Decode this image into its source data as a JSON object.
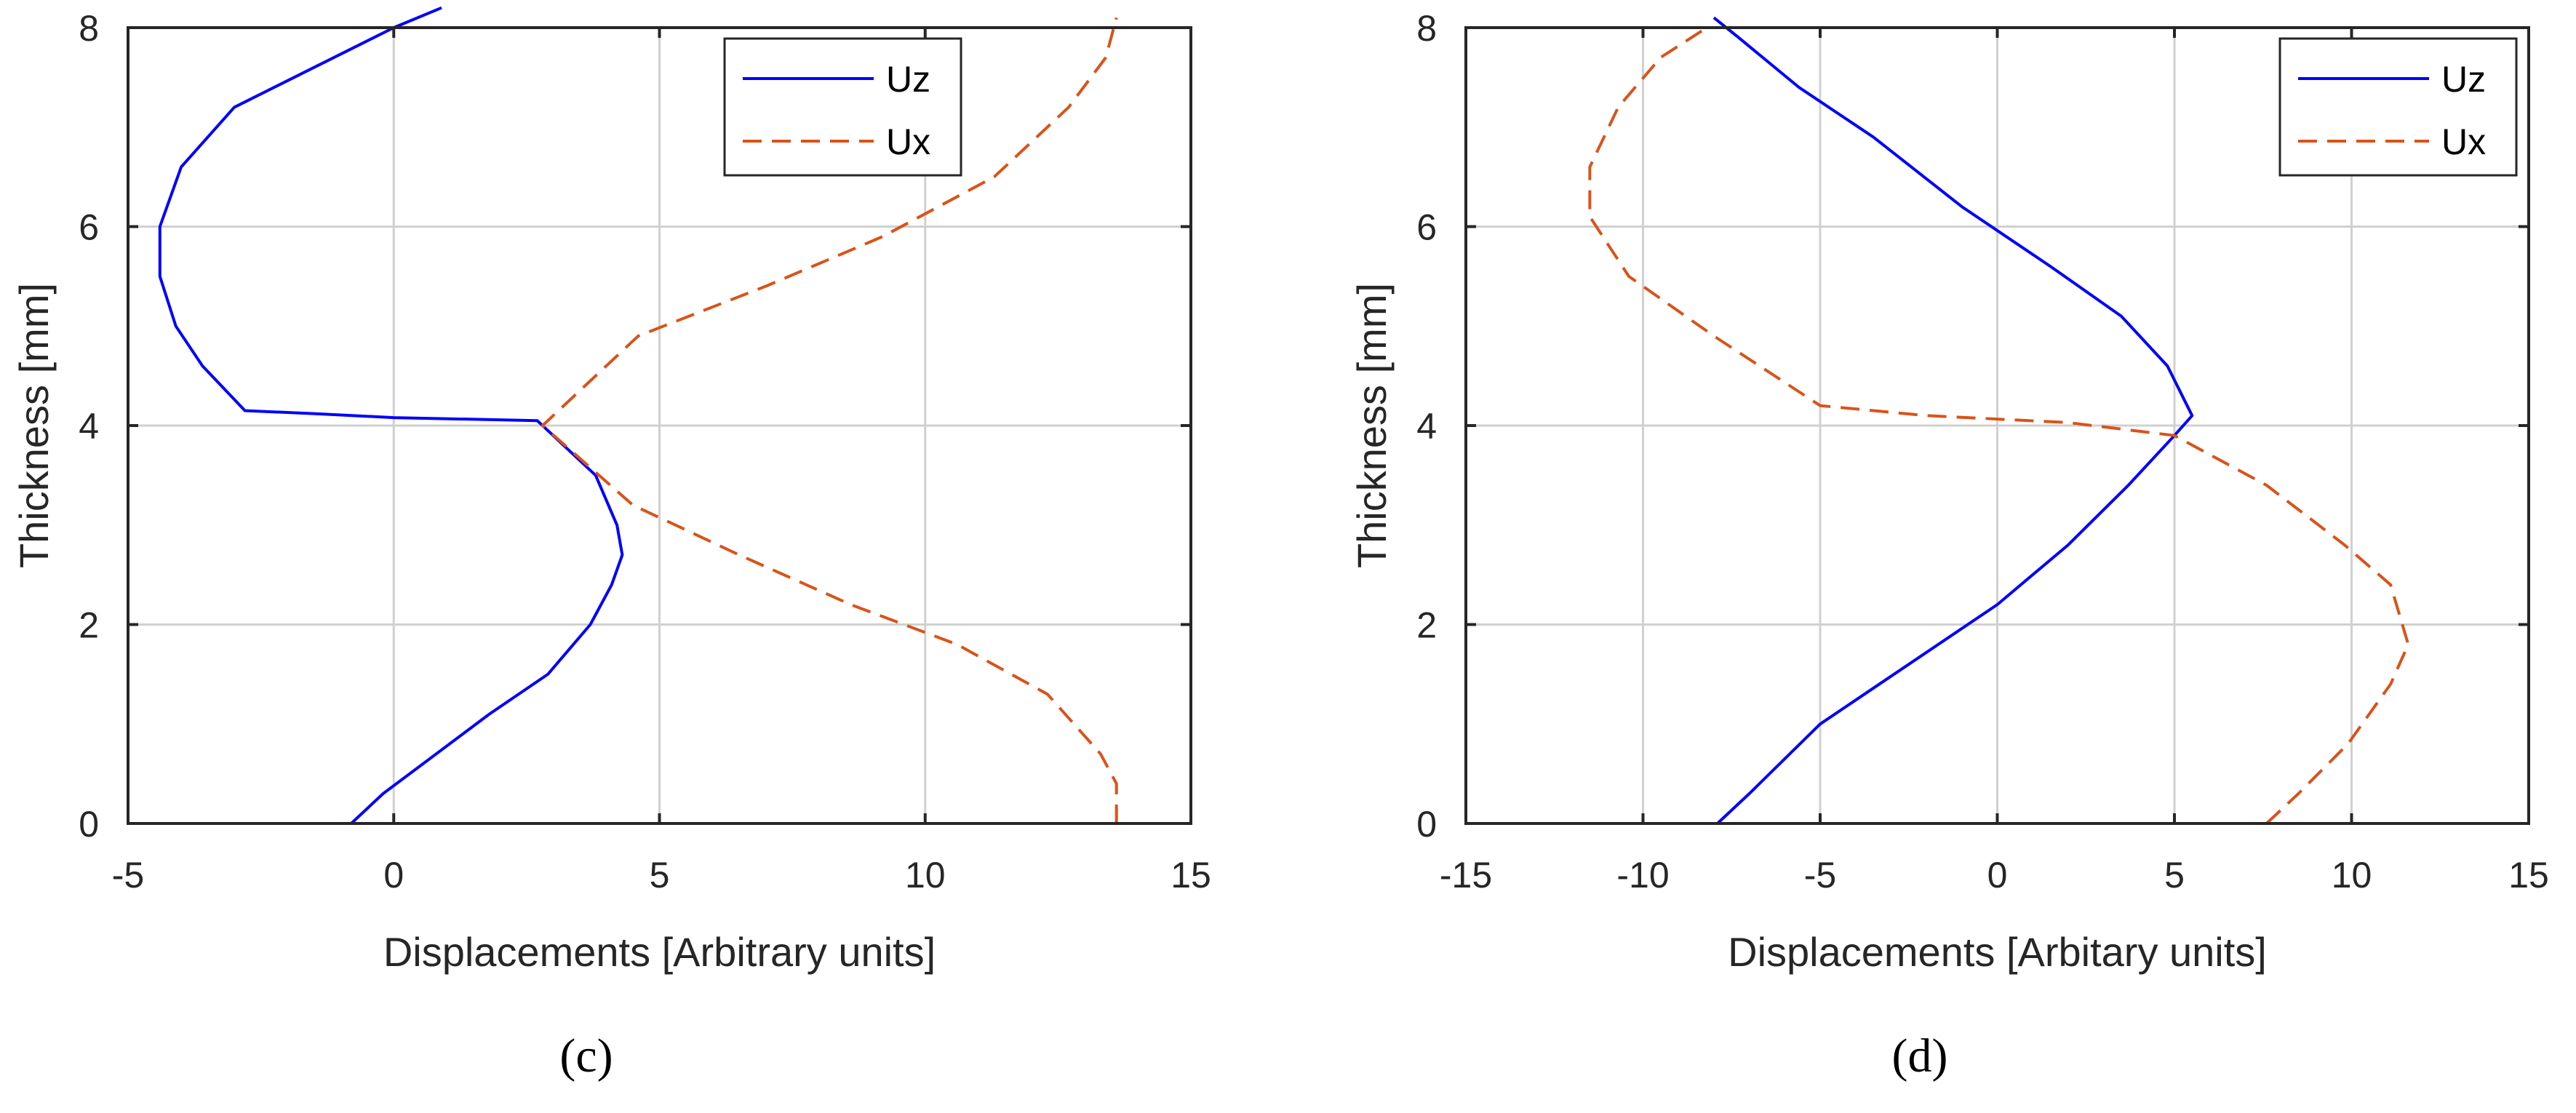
{
  "colors": {
    "uz": "#0000ff",
    "ux": "#d95319",
    "axis": "#262626",
    "grid": "#d0d0d0"
  },
  "chart_data": [
    {
      "type": "line",
      "panel_label": "(c)",
      "xlabel": "Displacements [Arbitrary units]",
      "ylabel": "Thickness [mm]",
      "xlim": [
        -5,
        15
      ],
      "ylim": [
        0,
        8
      ],
      "xticks": [
        -5,
        0,
        5,
        10,
        15
      ],
      "yticks": [
        0,
        2,
        4,
        6,
        8
      ],
      "grid": true,
      "legend_position": "top-right",
      "series": [
        {
          "name": "Uz",
          "style": "solid",
          "color": "#0000ff",
          "x": [
            -0.8,
            -0.2,
            0.8,
            1.8,
            2.9,
            3.7,
            4.1,
            4.3,
            4.2,
            3.8,
            2.7,
            0,
            -1.5,
            -2.8,
            -3.6,
            -4.1,
            -4.4,
            -4.4,
            -4.0,
            -3.0,
            -1.5,
            0,
            0.9
          ],
          "y": [
            0,
            0.3,
            0.7,
            1.1,
            1.5,
            2.0,
            2.4,
            2.7,
            3.0,
            3.5,
            4.05,
            4.08,
            4.12,
            4.15,
            4.6,
            5.0,
            5.5,
            6.0,
            6.6,
            7.2,
            7.6,
            8.0,
            8.2
          ]
        },
        {
          "name": "Ux",
          "style": "dashed",
          "color": "#d95319",
          "x": [
            13.6,
            13.6,
            13.3,
            12.3,
            10.6,
            8.6,
            6.5,
            4.5,
            2.8,
            4.6,
            7.0,
            9.2,
            11.3,
            12.7,
            13.4,
            13.6
          ],
          "y": [
            0,
            0.4,
            0.7,
            1.3,
            1.8,
            2.2,
            2.7,
            3.2,
            4.0,
            4.9,
            5.4,
            5.9,
            6.5,
            7.2,
            7.7,
            8.1
          ]
        }
      ]
    },
    {
      "type": "line",
      "panel_label": "(d)",
      "xlabel": "Displacements [Arbitary units]",
      "ylabel": "Thickness [mm]",
      "xlim": [
        -15,
        15
      ],
      "ylim": [
        0,
        8
      ],
      "xticks": [
        -15,
        -10,
        -5,
        0,
        5,
        10,
        15
      ],
      "yticks": [
        0,
        2,
        4,
        6,
        8
      ],
      "grid": true,
      "legend_position": "top-right",
      "series": [
        {
          "name": "Uz",
          "style": "solid",
          "color": "#0000ff",
          "x": [
            -7.9,
            -7.0,
            -5.0,
            -2.5,
            0,
            2.0,
            3.7,
            5.0,
            5.5,
            4.8,
            3.5,
            1.5,
            -1.0,
            -3.5,
            -5.6,
            -7.3,
            -8.0
          ],
          "y": [
            0,
            0.3,
            1.0,
            1.6,
            2.2,
            2.8,
            3.4,
            3.9,
            4.1,
            4.6,
            5.1,
            5.6,
            6.2,
            6.9,
            7.4,
            7.9,
            8.1
          ]
        },
        {
          "name": "Ux",
          "style": "dashed",
          "color": "#d95319",
          "x": [
            7.6,
            8.5,
            9.9,
            11.1,
            11.6,
            11.1,
            9.8,
            7.6,
            5.0,
            2.0,
            -2.0,
            -5.0,
            -8.0,
            -10.4,
            -11.5,
            -11.5,
            -10.7,
            -9.5,
            -8.2
          ],
          "y": [
            0,
            0.3,
            0.8,
            1.4,
            1.8,
            2.4,
            2.8,
            3.4,
            3.9,
            4.03,
            4.1,
            4.2,
            4.9,
            5.5,
            6.1,
            6.6,
            7.2,
            7.7,
            8.0
          ]
        }
      ]
    }
  ]
}
